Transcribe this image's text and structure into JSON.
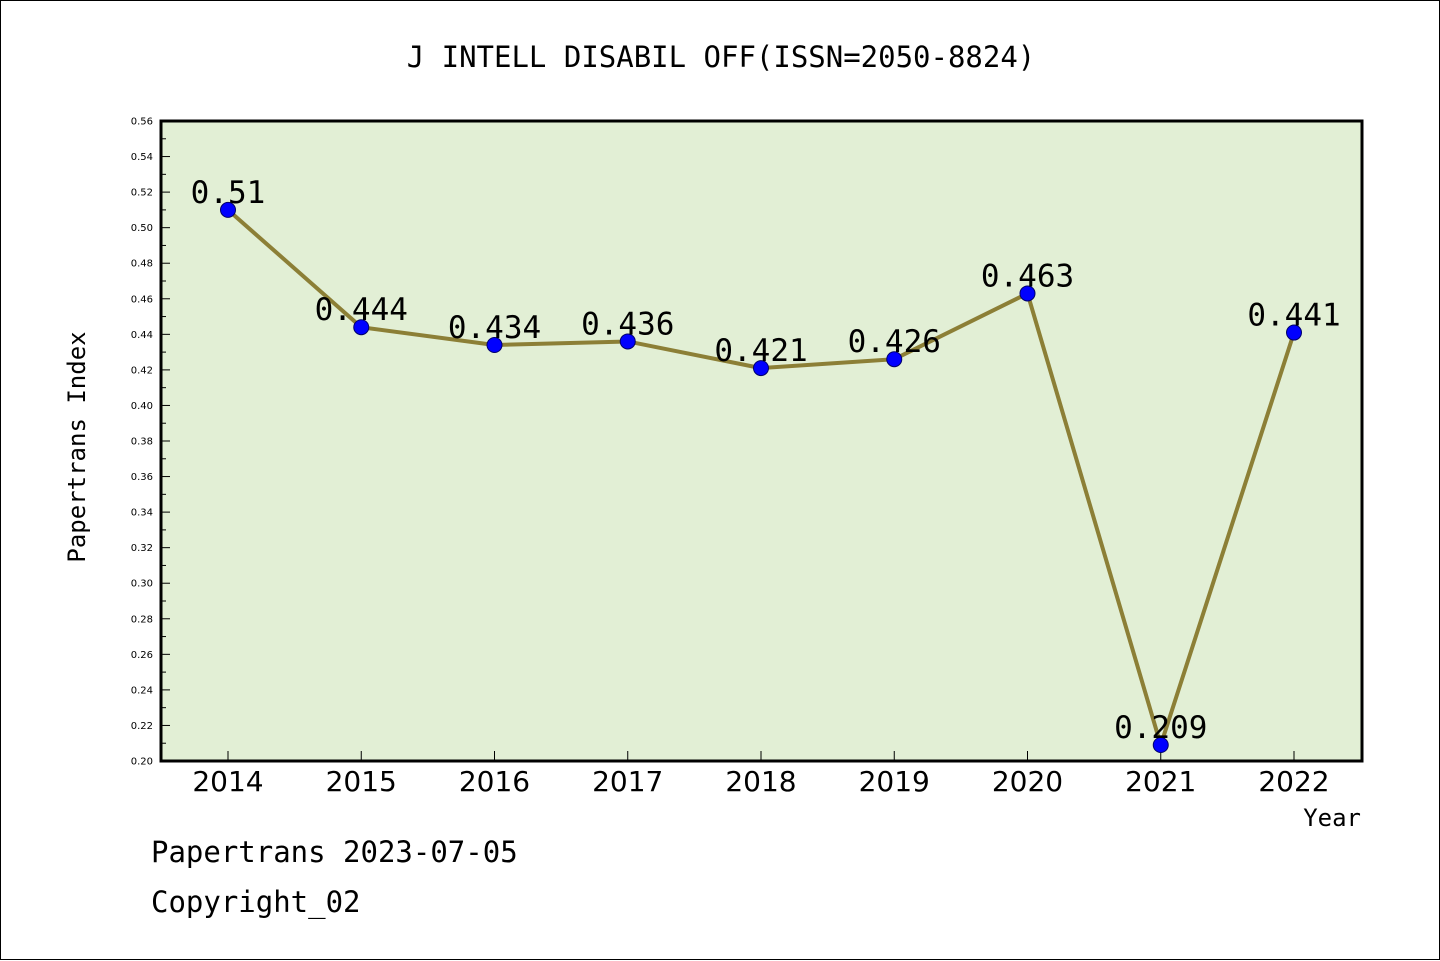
{
  "chart_data": {
    "type": "line",
    "title": "J INTELL DISABIL OFF(ISSN=2050-8824)",
    "xlabel": "Year",
    "ylabel": "Papertrans Index",
    "categories": [
      "2014",
      "2015",
      "2016",
      "2017",
      "2018",
      "2019",
      "2020",
      "2021",
      "2022"
    ],
    "series": [
      {
        "values": [
          0.51,
          0.444,
          0.434,
          0.436,
          0.421,
          0.426,
          0.463,
          0.209,
          0.441
        ],
        "labels": [
          "0.51",
          "0.444",
          "0.434",
          "0.436",
          "0.421",
          "0.426",
          "0.463",
          "0.209",
          "0.441"
        ],
        "line_color": "#8c7f36",
        "marker_color": "#0000ff"
      }
    ],
    "ylim": [
      0.2,
      0.56
    ],
    "yticks": [
      "0.20",
      "0.22",
      "0.24",
      "0.26",
      "0.28",
      "0.30",
      "0.32",
      "0.34",
      "0.36",
      "0.38",
      "0.40",
      "0.42",
      "0.44",
      "0.46",
      "0.48",
      "0.50",
      "0.52",
      "0.54",
      "0.56"
    ],
    "plot_background": "#e2efd5",
    "grid": false,
    "legend": "none"
  },
  "footer": {
    "date_line": "Papertrans 2023-07-05",
    "copyright": "Copyright_02"
  }
}
